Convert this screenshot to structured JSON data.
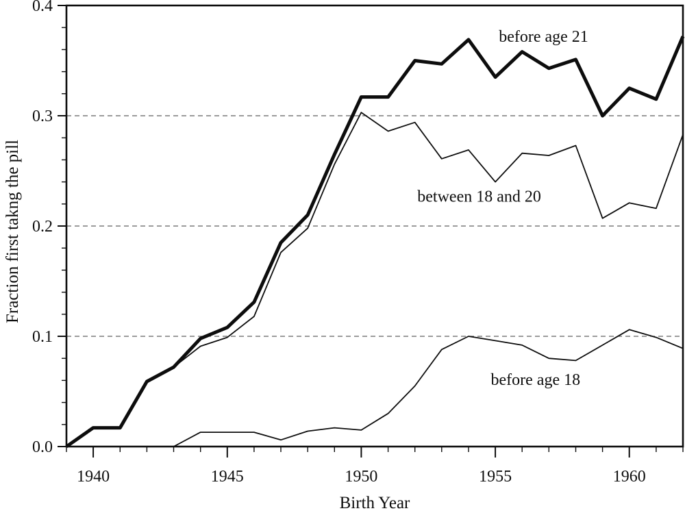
{
  "figure": {
    "background": "#ffffff",
    "ink_color": "#0d0d0d",
    "grid_color": "#5f5f5f"
  },
  "chart_data": {
    "type": "line",
    "title": "",
    "xlabel": "Birth Year",
    "ylabel": "Fraction first takng the pill",
    "xlim": [
      1939,
      1962
    ],
    "ylim": [
      0,
      0.4
    ],
    "x_major_ticks": [
      1940,
      1945,
      1950,
      1955,
      1960
    ],
    "x_minor_tick_step": 1,
    "y_major_ticks": [
      0,
      0.1,
      0.2,
      0.3,
      0.4
    ],
    "y_minor_tick_step": 0.02,
    "y_gridlines_dashed": [
      0.1,
      0.2,
      0.3
    ],
    "grid": "horizontal-dashed",
    "legend_position": "inline-labels",
    "x": [
      1939,
      1940,
      1941,
      1942,
      1943,
      1944,
      1945,
      1946,
      1947,
      1948,
      1949,
      1950,
      1951,
      1952,
      1953,
      1954,
      1955,
      1956,
      1957,
      1958,
      1959,
      1960,
      1961,
      1962
    ],
    "series": [
      {
        "name": "before age 21",
        "style": "thick",
        "values": [
          0.0,
          0.017,
          0.017,
          0.059,
          0.072,
          0.098,
          0.108,
          0.131,
          0.185,
          0.21,
          0.265,
          0.317,
          0.317,
          0.35,
          0.347,
          0.369,
          0.335,
          0.358,
          0.343,
          0.351,
          0.3,
          0.325,
          0.315,
          0.372
        ]
      },
      {
        "name": "between 18 and 20",
        "style": "thin",
        "values": [
          0.0,
          0.017,
          0.017,
          0.059,
          0.072,
          0.091,
          0.099,
          0.118,
          0.176,
          0.198,
          0.256,
          0.303,
          0.286,
          0.294,
          0.261,
          0.269,
          0.24,
          0.266,
          0.264,
          0.273,
          0.207,
          0.221,
          0.216,
          0.283
        ]
      },
      {
        "name": "before age 18",
        "style": "thin",
        "values": [
          null,
          null,
          null,
          null,
          0.0,
          0.013,
          0.013,
          0.013,
          0.006,
          0.014,
          0.017,
          0.015,
          0.03,
          0.055,
          0.088,
          0.1,
          0.096,
          0.092,
          0.08,
          0.078,
          0.092,
          0.106,
          0.099,
          0.089
        ]
      }
    ],
    "annotations": [
      {
        "text": "before age 21",
        "x": 1956.8,
        "y": 0.372
      },
      {
        "text": "between 18 and 20",
        "x": 1954.4,
        "y": 0.227
      },
      {
        "text": "before age 18",
        "x": 1956.5,
        "y": 0.061
      }
    ]
  }
}
